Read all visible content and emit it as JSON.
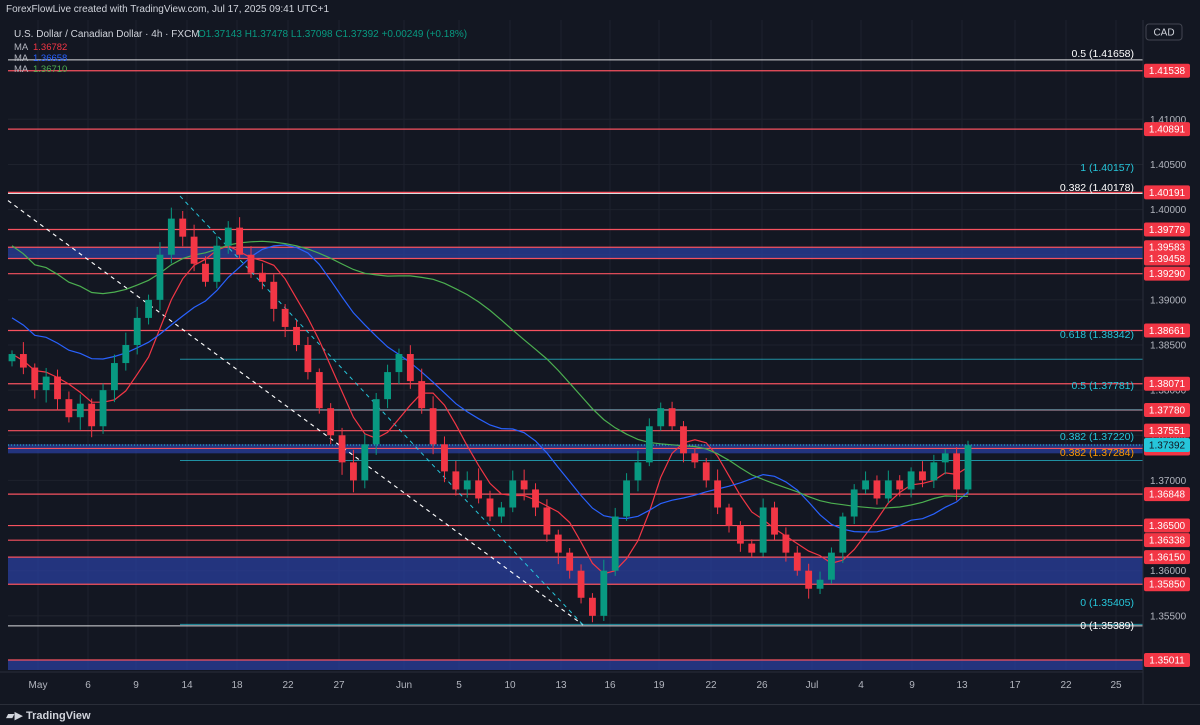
{
  "header": {
    "created_by": "ForexFlowLive created with TradingView.com, Jul 17, 2025 09:41 UTC+1",
    "symbol": "U.S. Dollar / Canadian Dollar · 4h · FXCM",
    "ohlc": {
      "O": "1.37143",
      "H": "1.37478",
      "L": "1.37098",
      "C": "1.37392",
      "change": "+0.00249 (+0.18%)"
    },
    "ma": [
      {
        "label": "MA",
        "value": "1.36782",
        "color": "#f23645"
      },
      {
        "label": "MA",
        "value": "1.36658",
        "color": "#2962ff"
      },
      {
        "label": "MA",
        "value": "1.36710",
        "color": "#4caf50"
      }
    ],
    "currency_badge": "CAD"
  },
  "footer": {
    "logo_text": "TradingView"
  },
  "colors": {
    "background": "#131722",
    "up": "#089981",
    "down": "#f23645",
    "level_line": "#f7525f",
    "label_bg": "#f23645",
    "zone": "#2a3f9d",
    "current_price": "#26c6da",
    "fib_blue": "#26c6da",
    "fib_orange": "#ff9800",
    "white": "#ffffff"
  },
  "chart_data": {
    "type": "candlestick",
    "instrument": "USDCAD",
    "timeframe": "4h",
    "x_axis": {
      "ticks": [
        "May",
        "6",
        "9",
        "14",
        "18",
        "22",
        "27",
        "Jun",
        "5",
        "10",
        "13",
        "16",
        "19",
        "22",
        "26",
        "Jul",
        "4",
        "9",
        "13",
        "17",
        "22",
        "25"
      ]
    },
    "y_axis": {
      "ticks": [
        "1.41000",
        "1.40500",
        "1.40000",
        "1.39500",
        "1.39000",
        "1.38500",
        "1.38000",
        "1.37500",
        "1.37000",
        "1.36500",
        "1.36000",
        "1.35500"
      ],
      "range": [
        1.349,
        1.421
      ]
    },
    "last_price": "1.37392",
    "horizontal_levels": [
      {
        "value": 1.41538,
        "label": "1.41538"
      },
      {
        "value": 1.40891,
        "label": "1.40891"
      },
      {
        "value": 1.40191,
        "label": "1.40191"
      },
      {
        "value": 1.39779,
        "label": "1.39779"
      },
      {
        "value": 1.39583,
        "label": "1.39583"
      },
      {
        "value": 1.39458,
        "label": "1.39458"
      },
      {
        "value": 1.3929,
        "label": "1.39290"
      },
      {
        "value": 1.38661,
        "label": "1.38661"
      },
      {
        "value": 1.38071,
        "label": "1.38071"
      },
      {
        "value": 1.3778,
        "label": "1.37780"
      },
      {
        "value": 1.37551,
        "label": "1.37551"
      },
      {
        "value": 1.37354,
        "label": "1.37354"
      },
      {
        "value": 1.36848,
        "label": "1.36848"
      },
      {
        "value": 1.365,
        "label": "1.36500"
      },
      {
        "value": 1.36338,
        "label": "1.36338"
      },
      {
        "value": 1.3615,
        "label": "1.36150"
      },
      {
        "value": 1.3585,
        "label": "1.35850"
      },
      {
        "value": 1.35011,
        "label": "1.35011"
      }
    ],
    "zones": [
      {
        "from": 1.39458,
        "to": 1.39583
      },
      {
        "from": 1.373,
        "to": 1.374
      },
      {
        "from": 1.3585,
        "to": 1.3615
      },
      {
        "from": 1.349,
        "to": 1.35011
      }
    ],
    "fib_labels": [
      {
        "text": "0.5 (1.41658)",
        "value": 1.41658,
        "color": "#ffffff"
      },
      {
        "text": "1 (1.40157)",
        "value": 1.40157,
        "color": "#26c6da"
      },
      {
        "text": "0.382 (1.40178)",
        "value": 1.40178,
        "color": "#ffffff"
      },
      {
        "text": "0.618 (1.38342)",
        "value": 1.38342,
        "color": "#26c6da"
      },
      {
        "text": "0.5 (1.37781)",
        "value": 1.37781,
        "color": "#26c6da"
      },
      {
        "text": "0.382 (1.37220)",
        "value": 1.3722,
        "color": "#26c6da"
      },
      {
        "text": "0.382 (1.37284)",
        "value": 1.37284,
        "color": "#ff9800"
      },
      {
        "text": "0 (1.35405)",
        "value": 1.35405,
        "color": "#26c6da"
      },
      {
        "text": "0 (1.35389)",
        "value": 1.35389,
        "color": "#ffffff"
      }
    ],
    "close_series": [
      1.384,
      1.3825,
      1.38,
      1.3815,
      1.379,
      1.377,
      1.3785,
      1.376,
      1.38,
      1.383,
      1.385,
      1.388,
      1.39,
      1.395,
      1.399,
      1.397,
      1.394,
      1.392,
      1.396,
      1.398,
      1.395,
      1.393,
      1.392,
      1.389,
      1.387,
      1.385,
      1.382,
      1.378,
      1.375,
      1.372,
      1.37,
      1.374,
      1.379,
      1.382,
      1.384,
      1.381,
      1.378,
      1.374,
      1.371,
      1.369,
      1.37,
      1.368,
      1.366,
      1.367,
      1.37,
      1.369,
      1.367,
      1.364,
      1.362,
      1.36,
      1.357,
      1.355,
      1.36,
      1.366,
      1.37,
      1.372,
      1.376,
      1.378,
      1.376,
      1.373,
      1.372,
      1.37,
      1.367,
      1.365,
      1.363,
      1.362,
      1.367,
      1.364,
      1.362,
      1.36,
      1.358,
      1.359,
      1.362,
      1.366,
      1.369,
      1.37,
      1.368,
      1.37,
      1.369,
      1.371,
      1.37,
      1.372,
      1.373,
      1.369,
      1.3739
    ]
  }
}
